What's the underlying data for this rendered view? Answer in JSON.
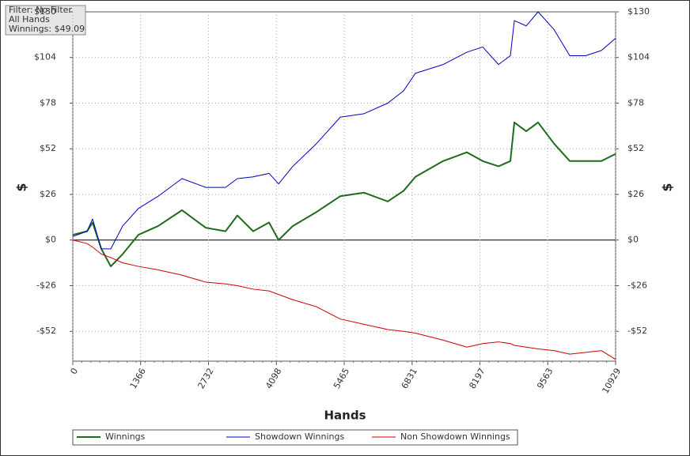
{
  "info_box": [
    "Filter: No Filter",
    "All Hands",
    "Winnings: $49.09"
  ],
  "chart_data": {
    "type": "line",
    "xlabel": "Hands",
    "ylabel": "$",
    "y2label": "$",
    "x": [
      0,
      287,
      398,
      574,
      765,
      1004,
      1322,
      1720,
      2198,
      2677,
      3075,
      3314,
      3632,
      3951,
      4143,
      4430,
      4908,
      5386,
      5864,
      6342,
      6659,
      6898,
      7456,
      7934,
      8253,
      8571,
      8810,
      8890,
      9129,
      9368,
      9687,
      10006,
      10325,
      10643,
      10929
    ],
    "series": [
      {
        "name": "Winnings",
        "color": "#1e6b1e",
        "values": [
          3,
          5,
          10,
          -5,
          -15,
          -8,
          3,
          8,
          17,
          7,
          5,
          14,
          5,
          10,
          0,
          8,
          16,
          25,
          27,
          22,
          28,
          36,
          45,
          50,
          45,
          42,
          45,
          67,
          62,
          67,
          55,
          45,
          45,
          45,
          49.09
        ]
      },
      {
        "name": "Showdown Winnings",
        "color": "#0000c0",
        "values": [
          2,
          5,
          12,
          -5,
          -5,
          8,
          18,
          25,
          35,
          30,
          30,
          35,
          36,
          38,
          32,
          42,
          55,
          70,
          72,
          78,
          85,
          95,
          100,
          107,
          110,
          100,
          105,
          125,
          122,
          130,
          120,
          105,
          105,
          108,
          115
        ]
      },
      {
        "name": "Non Showdown Winnings",
        "color": "#d00000",
        "values": [
          0,
          -2,
          -4,
          -8,
          -10,
          -13,
          -15,
          -17,
          -20,
          -24,
          -25,
          -26,
          -28,
          -29,
          -31,
          -34,
          -38,
          -45,
          -48,
          -51,
          -52,
          -53,
          -57,
          -61,
          -59,
          -58,
          -59,
          -60,
          -61,
          -62,
          -63,
          -65,
          -64,
          -63,
          -68
        ]
      }
    ],
    "xlim": [
      0,
      10929
    ],
    "xticks": [
      0,
      1366,
      2732,
      4098,
      5465,
      6831,
      8197,
      9563,
      10929
    ],
    "ylim": [
      -69,
      130
    ],
    "yticks": [
      {
        "value": -52,
        "label": "-$52"
      },
      {
        "value": -26,
        "label": "-$26"
      },
      {
        "value": 0,
        "label": "$0"
      },
      {
        "value": 26,
        "label": "$26"
      },
      {
        "value": 52,
        "label": "$52"
      },
      {
        "value": 78,
        "label": "$78"
      },
      {
        "value": 104,
        "label": "$104"
      },
      {
        "value": 130,
        "label": "$130"
      }
    ],
    "y2lim": [
      -69,
      130
    ],
    "y2ticks": [
      {
        "value": -52,
        "label": "-$52"
      },
      {
        "value": -26,
        "label": "-$26"
      },
      {
        "value": 0,
        "label": "$0"
      },
      {
        "value": 26,
        "label": "$26"
      },
      {
        "value": 52,
        "label": "$52"
      },
      {
        "value": 78,
        "label": "$78"
      },
      {
        "value": 104,
        "label": "$104"
      },
      {
        "value": 130,
        "label": "$130"
      }
    ],
    "grid": true
  }
}
